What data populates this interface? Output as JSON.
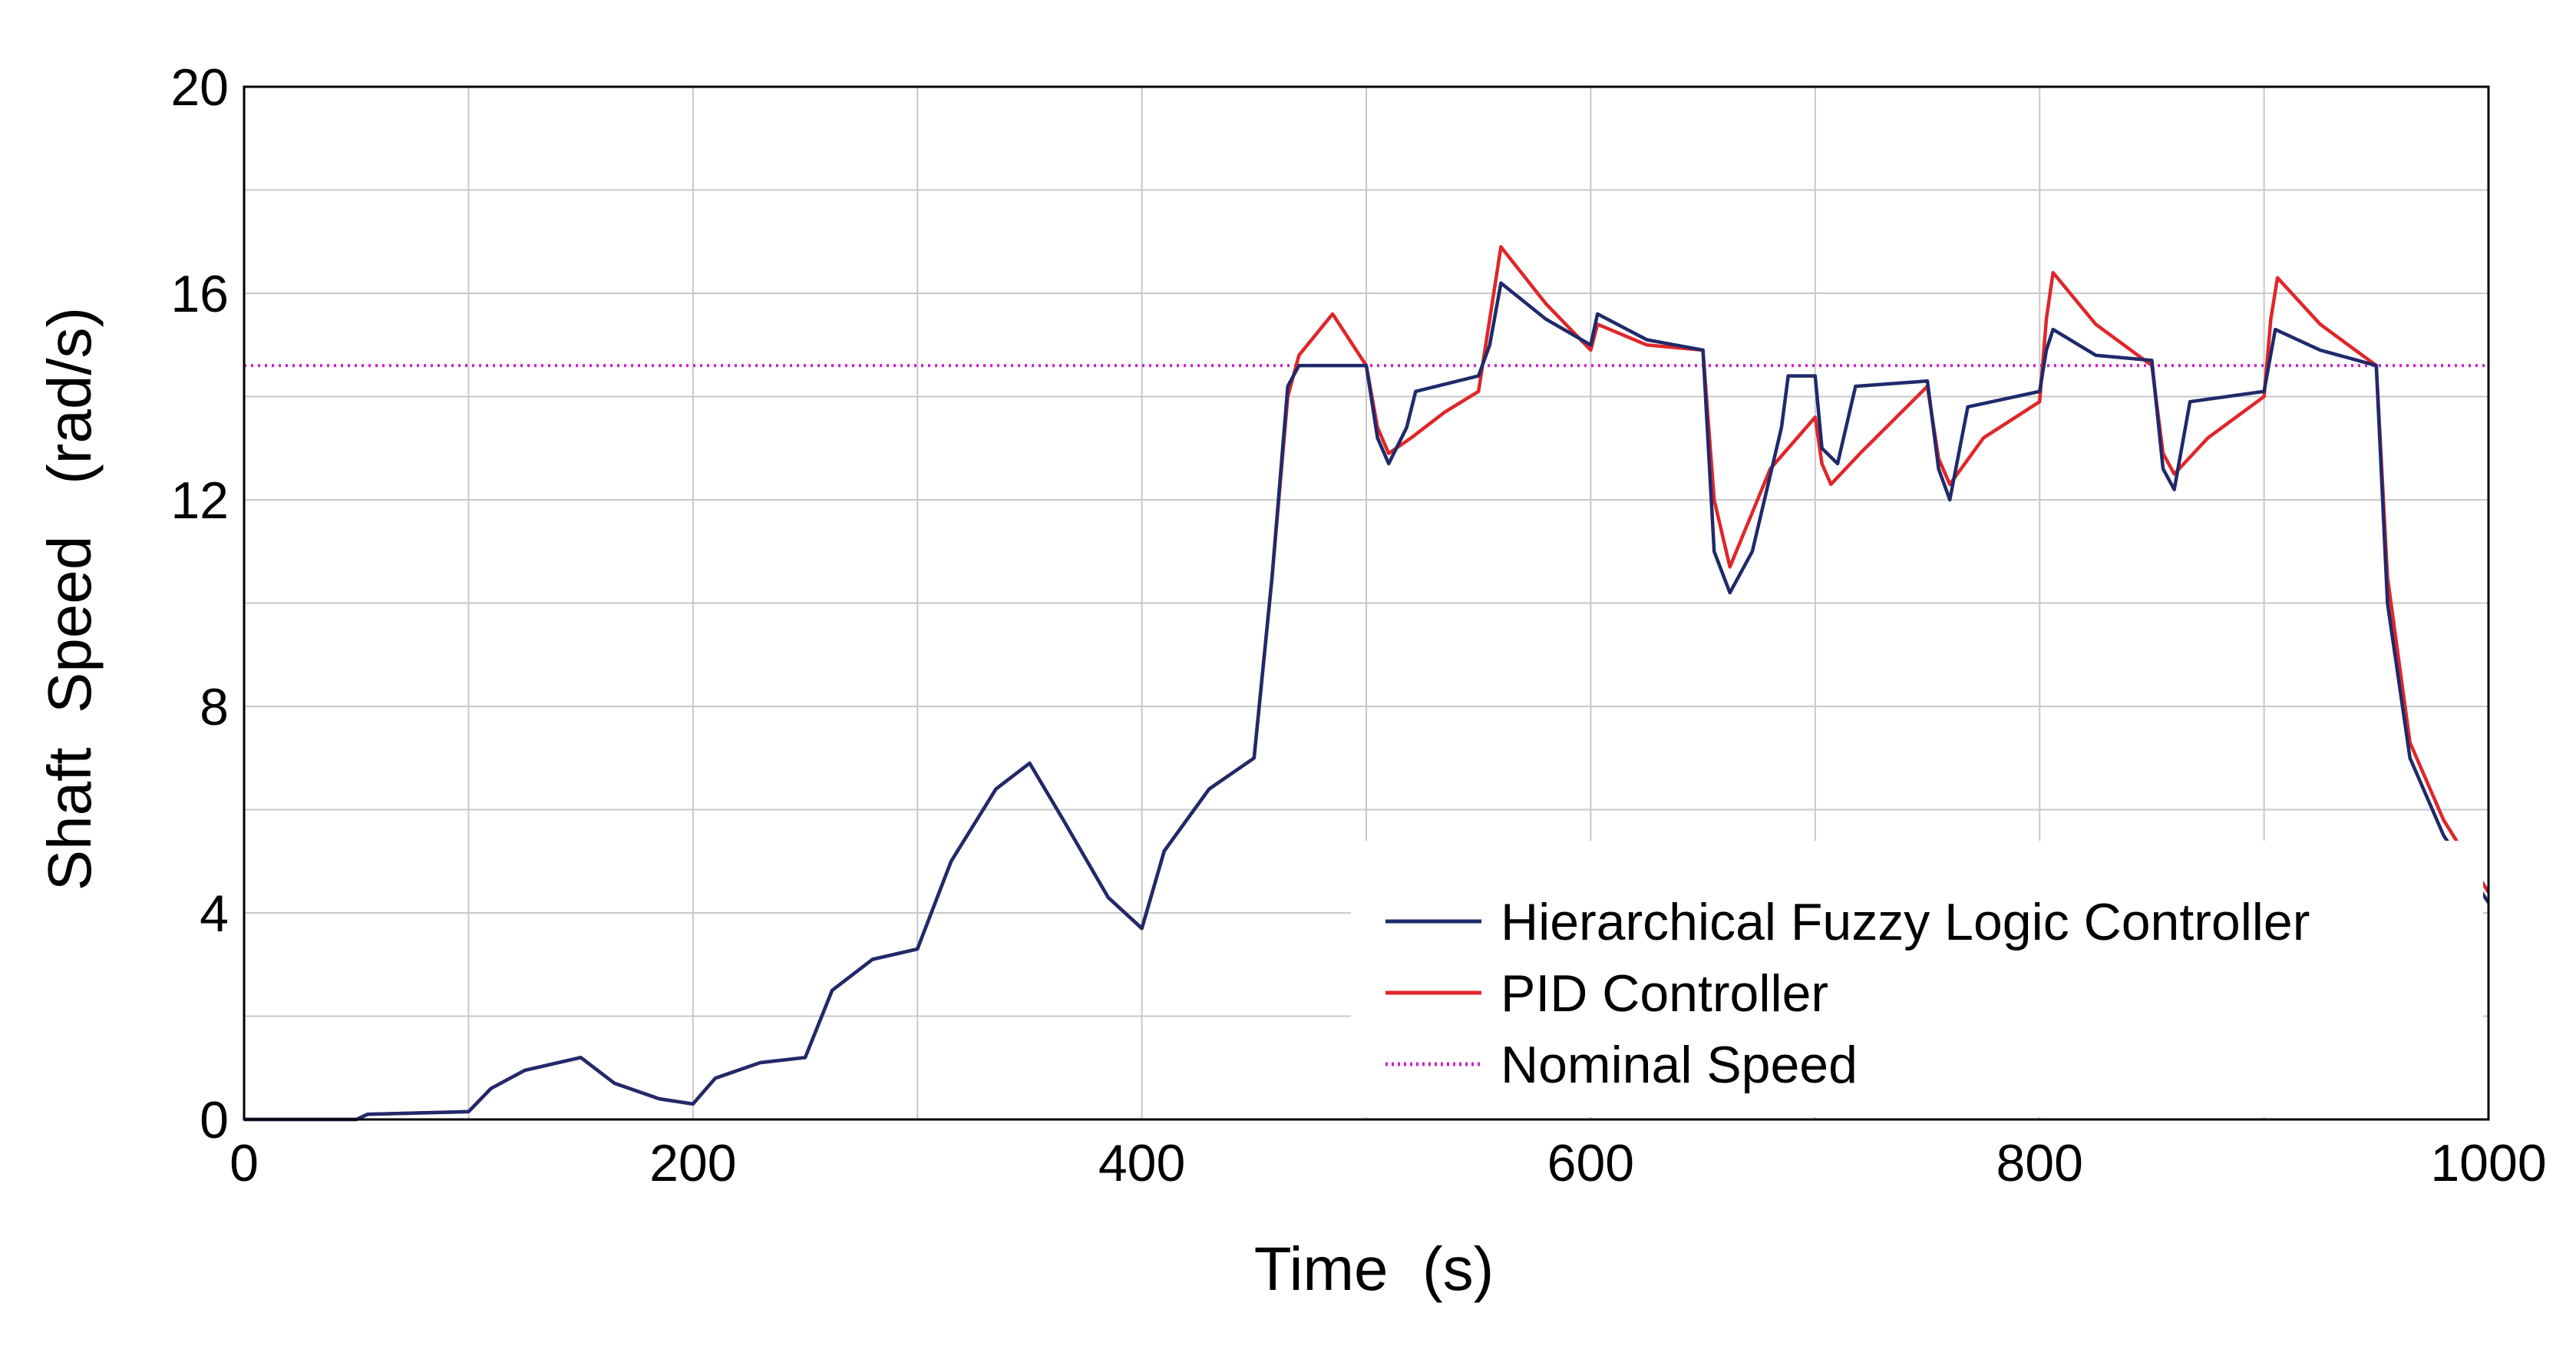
{
  "chart_data": {
    "type": "line",
    "title": "",
    "xlabel": "Time  (s)",
    "ylabel": "Shaft  Speed   (rad/s)",
    "xlim": [
      0,
      1000
    ],
    "ylim": [
      0,
      20
    ],
    "x_ticks": [
      0,
      200,
      400,
      600,
      800,
      1000
    ],
    "y_ticks": [
      0,
      4,
      8,
      12,
      16,
      20
    ],
    "x_grid": [
      0,
      100,
      200,
      300,
      400,
      500,
      600,
      700,
      800,
      900,
      1000
    ],
    "y_grid": [
      0,
      2,
      4,
      6,
      8,
      10,
      12,
      14,
      16,
      18,
      20
    ],
    "grid": true,
    "legend_position": "bottom-right",
    "series": [
      {
        "name": "Hierarchical Fuzzy Logic Controller",
        "color": "#1f2a6b",
        "style": "solid",
        "points": [
          [
            0,
            0
          ],
          [
            50,
            0
          ],
          [
            55,
            0.1
          ],
          [
            100,
            0.15
          ],
          [
            110,
            0.6
          ],
          [
            125,
            0.95
          ],
          [
            150,
            1.2
          ],
          [
            165,
            0.7
          ],
          [
            185,
            0.4
          ],
          [
            200,
            0.3
          ],
          [
            210,
            0.8
          ],
          [
            230,
            1.1
          ],
          [
            250,
            1.2
          ],
          [
            262,
            2.5
          ],
          [
            280,
            3.1
          ],
          [
            300,
            3.3
          ],
          [
            315,
            5.0
          ],
          [
            335,
            6.4
          ],
          [
            350,
            6.9
          ],
          [
            365,
            5.8
          ],
          [
            385,
            4.3
          ],
          [
            400,
            3.7
          ],
          [
            410,
            5.2
          ],
          [
            430,
            6.4
          ],
          [
            450,
            7.0
          ],
          [
            458,
            10.5
          ],
          [
            465,
            14.2
          ],
          [
            470,
            14.6
          ],
          [
            500,
            14.6
          ],
          [
            505,
            13.2
          ],
          [
            510,
            12.7
          ],
          [
            518,
            13.4
          ],
          [
            522,
            14.1
          ],
          [
            550,
            14.4
          ],
          [
            555,
            15.0
          ],
          [
            560,
            16.2
          ],
          [
            580,
            15.5
          ],
          [
            600,
            15.0
          ],
          [
            603,
            15.6
          ],
          [
            625,
            15.1
          ],
          [
            650,
            14.9
          ],
          [
            655,
            11.0
          ],
          [
            662,
            10.2
          ],
          [
            672,
            11.0
          ],
          [
            685,
            13.4
          ],
          [
            688,
            14.4
          ],
          [
            700,
            14.4
          ],
          [
            703,
            13.0
          ],
          [
            710,
            12.7
          ],
          [
            718,
            14.2
          ],
          [
            750,
            14.3
          ],
          [
            755,
            12.6
          ],
          [
            760,
            12.0
          ],
          [
            768,
            13.8
          ],
          [
            800,
            14.1
          ],
          [
            803,
            14.9
          ],
          [
            806,
            15.3
          ],
          [
            825,
            14.8
          ],
          [
            850,
            14.7
          ],
          [
            855,
            12.6
          ],
          [
            860,
            12.2
          ],
          [
            867,
            13.9
          ],
          [
            900,
            14.1
          ],
          [
            905,
            15.3
          ],
          [
            925,
            14.9
          ],
          [
            950,
            14.6
          ],
          [
            955,
            10.0
          ],
          [
            965,
            7.0
          ],
          [
            980,
            5.5
          ],
          [
            1000,
            4.2
          ]
        ]
      },
      {
        "name": "PID Controller",
        "color": "#e0262a",
        "style": "solid",
        "points": [
          [
            0,
            0
          ],
          [
            50,
            0
          ],
          [
            55,
            0.1
          ],
          [
            100,
            0.15
          ],
          [
            110,
            0.6
          ],
          [
            125,
            0.95
          ],
          [
            150,
            1.2
          ],
          [
            165,
            0.7
          ],
          [
            185,
            0.4
          ],
          [
            200,
            0.3
          ],
          [
            210,
            0.8
          ],
          [
            230,
            1.1
          ],
          [
            250,
            1.2
          ],
          [
            262,
            2.5
          ],
          [
            280,
            3.1
          ],
          [
            300,
            3.3
          ],
          [
            315,
            5.0
          ],
          [
            335,
            6.4
          ],
          [
            350,
            6.9
          ],
          [
            365,
            5.8
          ],
          [
            385,
            4.3
          ],
          [
            400,
            3.7
          ],
          [
            410,
            5.2
          ],
          [
            430,
            6.4
          ],
          [
            450,
            7.0
          ],
          [
            458,
            10.5
          ],
          [
            465,
            14.0
          ],
          [
            470,
            14.8
          ],
          [
            485,
            15.6
          ],
          [
            500,
            14.6
          ],
          [
            505,
            13.4
          ],
          [
            510,
            12.9
          ],
          [
            520,
            13.2
          ],
          [
            535,
            13.7
          ],
          [
            550,
            14.1
          ],
          [
            555,
            15.5
          ],
          [
            560,
            16.9
          ],
          [
            580,
            15.8
          ],
          [
            600,
            14.9
          ],
          [
            603,
            15.4
          ],
          [
            625,
            15.0
          ],
          [
            650,
            14.9
          ],
          [
            655,
            12.0
          ],
          [
            662,
            10.7
          ],
          [
            680,
            12.6
          ],
          [
            700,
            13.6
          ],
          [
            703,
            12.7
          ],
          [
            707,
            12.3
          ],
          [
            720,
            12.9
          ],
          [
            750,
            14.2
          ],
          [
            755,
            12.8
          ],
          [
            760,
            12.3
          ],
          [
            775,
            13.2
          ],
          [
            800,
            13.9
          ],
          [
            803,
            15.5
          ],
          [
            806,
            16.4
          ],
          [
            825,
            15.4
          ],
          [
            850,
            14.6
          ],
          [
            855,
            12.9
          ],
          [
            860,
            12.5
          ],
          [
            875,
            13.2
          ],
          [
            900,
            14.0
          ],
          [
            903,
            15.5
          ],
          [
            906,
            16.3
          ],
          [
            925,
            15.4
          ],
          [
            950,
            14.6
          ],
          [
            955,
            10.5
          ],
          [
            965,
            7.3
          ],
          [
            980,
            5.8
          ],
          [
            1000,
            4.4
          ]
        ]
      },
      {
        "name": "Nominal Speed",
        "color": "#cc22cc",
        "style": "dotted",
        "points": [
          [
            0,
            14.6
          ],
          [
            1000,
            14.6
          ]
        ]
      }
    ]
  }
}
